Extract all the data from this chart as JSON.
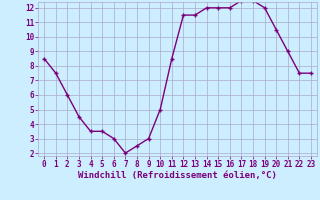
{
  "x": [
    0,
    1,
    2,
    3,
    4,
    5,
    6,
    7,
    8,
    9,
    10,
    11,
    12,
    13,
    14,
    15,
    16,
    17,
    18,
    19,
    20,
    21,
    22,
    23
  ],
  "y": [
    8.5,
    7.5,
    6.0,
    4.5,
    3.5,
    3.5,
    3.0,
    2.0,
    2.5,
    3.0,
    5.0,
    8.5,
    11.5,
    11.5,
    12.0,
    12.0,
    12.0,
    12.5,
    12.5,
    12.0,
    10.5,
    9.0,
    7.5,
    7.5
  ],
  "line_color": "#7b007b",
  "marker": "+",
  "bg_color": "#cceeff",
  "grid_color": "#aaaacc",
  "xlabel": "Windchill (Refroidissement éolien,°C)",
  "xlim_min": -0.5,
  "xlim_max": 23.5,
  "ylim_min": 1.8,
  "ylim_max": 12.4,
  "yticks": [
    2,
    3,
    4,
    5,
    6,
    7,
    8,
    9,
    10,
    11,
    12
  ],
  "xticks": [
    0,
    1,
    2,
    3,
    4,
    5,
    6,
    7,
    8,
    9,
    10,
    11,
    12,
    13,
    14,
    15,
    16,
    17,
    18,
    19,
    20,
    21,
    22,
    23
  ],
  "xlabel_fontsize": 6.5,
  "tick_fontsize": 5.5,
  "line_width": 1.0,
  "marker_size": 3.5
}
